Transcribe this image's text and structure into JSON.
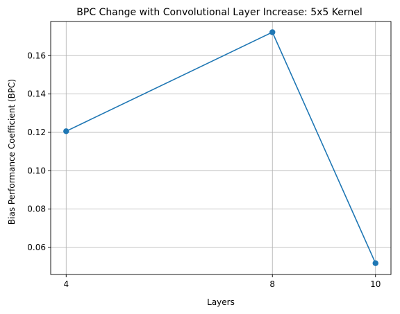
{
  "chart_data": {
    "type": "line",
    "title": "BPC Change with Convolutional Layer Increase: 5x5 Kernel",
    "xlabel": "Layers",
    "ylabel": "Bias Performance Coefficient (BPC)",
    "x": [
      4,
      8,
      10
    ],
    "x_ticks": [
      "4",
      "8",
      "10"
    ],
    "y_ticks": [
      "0.06",
      "0.08",
      "0.10",
      "0.12",
      "0.14",
      "0.16"
    ],
    "xlim": [
      3.7,
      10.3
    ],
    "ylim": [
      0.0459,
      0.1778
    ],
    "grid": true,
    "series": [
      {
        "values": [
          0.1206,
          0.1722,
          0.0518
        ],
        "color": "#1f77b4",
        "marker": "circle"
      }
    ]
  }
}
